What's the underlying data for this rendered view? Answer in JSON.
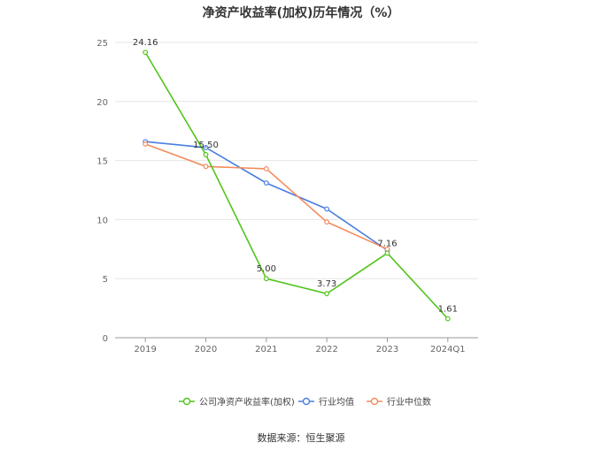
{
  "title": "净资产收益率(加权)历年情况（%）",
  "source": "数据来源：恒生聚源",
  "chart_data": {
    "type": "line",
    "categories": [
      "2019",
      "2020",
      "2021",
      "2022",
      "2023",
      "2024Q1"
    ],
    "ylim": [
      0,
      25
    ],
    "yticks": [
      0,
      5,
      10,
      15,
      20,
      25
    ],
    "grid": true,
    "legend_position": "bottom",
    "series": [
      {
        "name": "公司净资产收益率(加权)",
        "color": "#52c41a",
        "values": [
          24.16,
          15.5,
          5.0,
          3.73,
          7.16,
          1.61
        ],
        "labels": [
          "24.16",
          "15.50",
          "5.00",
          "3.73",
          "7.16",
          "1.61"
        ]
      },
      {
        "name": "行业均值",
        "color": "#4a7fe0",
        "values": [
          16.6,
          16.1,
          13.1,
          10.9,
          7.4,
          null
        ]
      },
      {
        "name": "行业中位数",
        "color": "#f28c5e",
        "values": [
          16.4,
          14.5,
          14.3,
          9.8,
          7.5,
          null
        ]
      }
    ]
  }
}
